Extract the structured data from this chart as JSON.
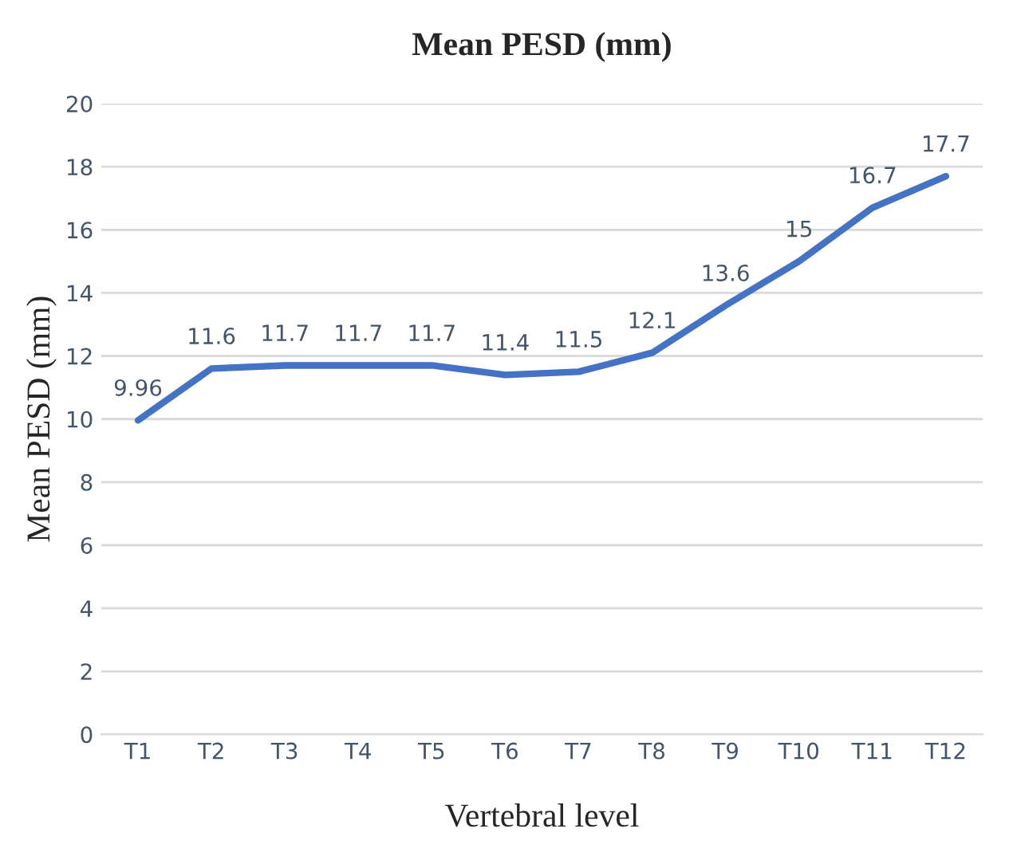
{
  "chart_data": {
    "type": "line",
    "title": "Mean PESD (mm)",
    "xlabel": "Vertebral level",
    "ylabel": "Mean PESD (mm)",
    "categories": [
      "T1",
      "T2",
      "T3",
      "T4",
      "T5",
      "T6",
      "T7",
      "T8",
      "T9",
      "T10",
      "T11",
      "T12"
    ],
    "series": [
      {
        "color": "#4472c4",
        "values": [
          9.96,
          11.6,
          11.7,
          11.7,
          11.7,
          11.4,
          11.5,
          12.1,
          13.6,
          15,
          16.7,
          17.7
        ]
      }
    ],
    "ylim": [
      0,
      20
    ],
    "yticks": [
      0,
      2,
      4,
      6,
      8,
      10,
      12,
      14,
      16,
      18,
      20
    ],
    "grid": "y",
    "data_labels": true,
    "marker": "none",
    "line_style": "solid"
  }
}
